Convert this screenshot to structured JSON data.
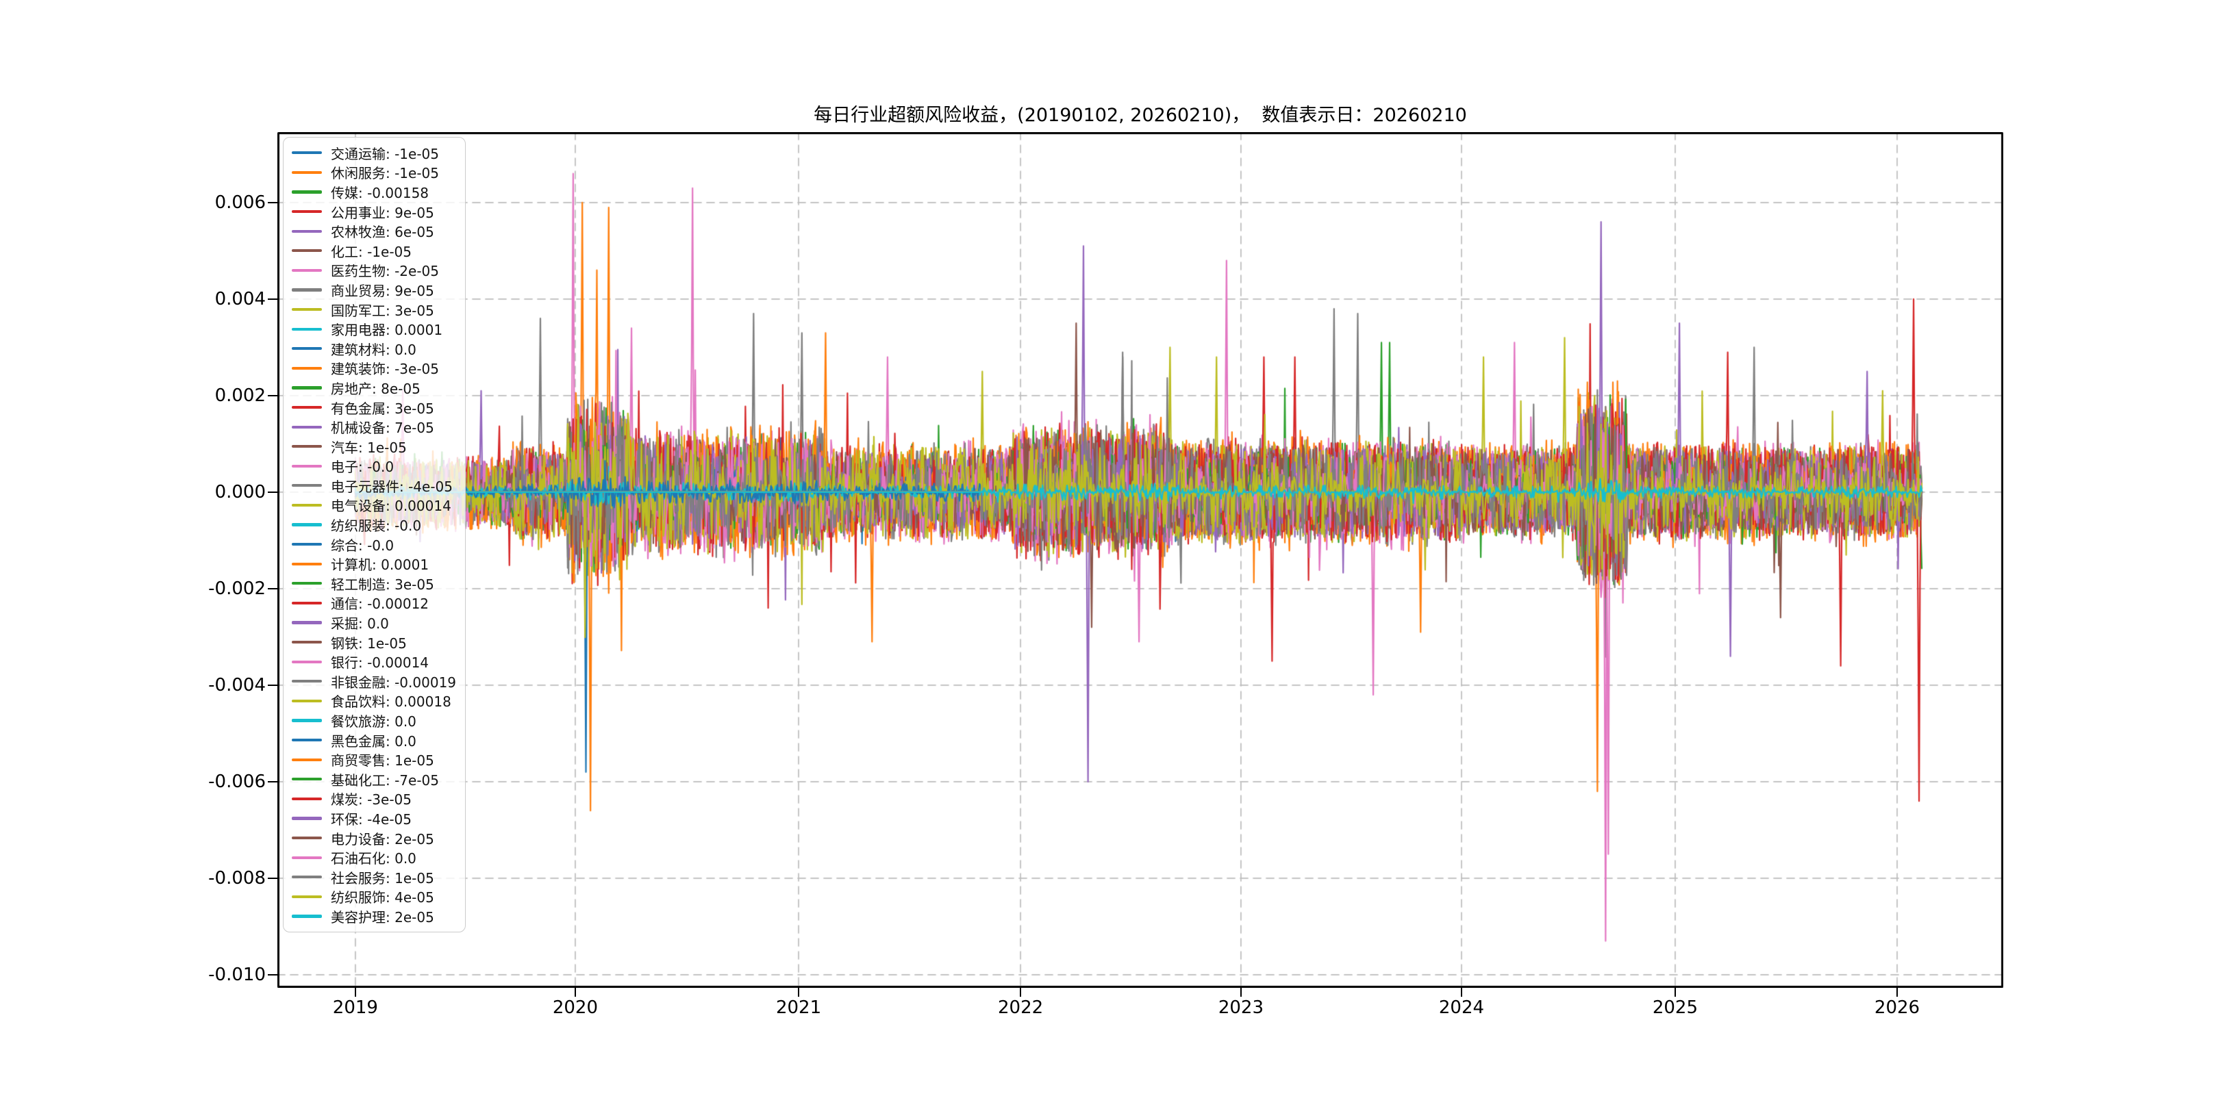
{
  "figure": {
    "background": "#ffffff"
  },
  "chart_data": {
    "type": "line",
    "title": "每日行业超额风险收益，(20190102, 20260210)，  数值表示日：20260210",
    "grid": {
      "on": true,
      "style": "dashed",
      "color": "#bcbcbc"
    },
    "legend_position": "upper-left",
    "ylim": [
      -0.01027,
      0.00746
    ],
    "data_x_range": [
      0.0452,
      0.9528
    ],
    "n_points": 1720,
    "line_width": 2.2,
    "y_ticks": [
      {
        "label": "0.006",
        "v": 0.006
      },
      {
        "label": "0.004",
        "v": 0.004
      },
      {
        "label": "0.002",
        "v": 0.002
      },
      {
        "label": "0.000",
        "v": 0.0
      },
      {
        "label": "-0.002",
        "v": -0.002
      },
      {
        "label": "-0.004",
        "v": -0.004
      },
      {
        "label": "-0.006",
        "v": -0.006
      },
      {
        "label": "-0.008",
        "v": -0.008
      },
      {
        "label": "-0.010",
        "v": -0.01
      }
    ],
    "x_ticks": [
      {
        "label": "2019",
        "f": 0.0452
      },
      {
        "label": "2020",
        "f": 0.1726
      },
      {
        "label": "2021",
        "f": 0.302
      },
      {
        "label": "2022",
        "f": 0.4306
      },
      {
        "label": "2023",
        "f": 0.5583
      },
      {
        "label": "2024",
        "f": 0.6861
      },
      {
        "label": "2025",
        "f": 0.8099
      },
      {
        "label": "2026",
        "f": 0.9385
      }
    ],
    "series": [
      {
        "name": "交通运输",
        "value": "-1e-05",
        "color": "#1f77b4",
        "amp": 0.00028,
        "start": 0
      },
      {
        "name": "休闲服务",
        "value": "-1e-05",
        "color": "#ff7f0e",
        "amp": 0.00055,
        "start": 0
      },
      {
        "name": "传媒",
        "value": "-0.00158",
        "color": "#2ca02c",
        "amp": 0.0005,
        "start": 0
      },
      {
        "name": "公用事业",
        "value": "9e-05",
        "color": "#d62728",
        "amp": 0.00042,
        "start": 0
      },
      {
        "name": "农林牧渔",
        "value": "6e-05",
        "color": "#9467bd",
        "amp": 0.00048,
        "start": 0
      },
      {
        "name": "化工",
        "value": "-1e-05",
        "color": "#8c564b",
        "amp": 0.00045,
        "start": 0
      },
      {
        "name": "医药生物",
        "value": "-2e-05",
        "color": "#e377c2",
        "amp": 0.00058,
        "start": 0
      },
      {
        "name": "商业贸易",
        "value": "9e-05",
        "color": "#7f7f7f",
        "amp": 0.00055,
        "start": 0
      },
      {
        "name": "国防军工",
        "value": "3e-05",
        "color": "#bcbd22",
        "amp": 0.0005,
        "start": 0
      },
      {
        "name": "家用电器",
        "value": "0.0001",
        "color": "#17becf",
        "amp": 0.00018,
        "start": 0
      },
      {
        "name": "建筑材料",
        "value": "0.0",
        "color": "#1f77b4",
        "amp": 0.0003,
        "start": 0
      },
      {
        "name": "建筑装饰",
        "value": "-3e-05",
        "color": "#ff7f0e",
        "amp": 0.00045,
        "start": 0
      },
      {
        "name": "房地产",
        "value": "8e-05",
        "color": "#2ca02c",
        "amp": 0.0004,
        "start": 0
      },
      {
        "name": "有色金属",
        "value": "3e-05",
        "color": "#d62728",
        "amp": 0.00055,
        "start": 0
      },
      {
        "name": "机械设备",
        "value": "7e-05",
        "color": "#9467bd",
        "amp": 0.00045,
        "start": 0
      },
      {
        "name": "汽车",
        "value": "1e-05",
        "color": "#8c564b",
        "amp": 0.00045,
        "start": 0
      },
      {
        "name": "电子",
        "value": "-0.0",
        "color": "#e377c2",
        "amp": 0.0005,
        "start": 0
      },
      {
        "name": "电子元器件",
        "value": "-4e-05",
        "color": "#7f7f7f",
        "amp": 0.00048,
        "start": 0
      },
      {
        "name": "电气设备",
        "value": "0.00014",
        "color": "#bcbd22",
        "amp": 0.00052,
        "start": 0
      },
      {
        "name": "纺织服装",
        "value": "-0.0",
        "color": "#17becf",
        "amp": 0.00016,
        "start": 0
      },
      {
        "name": "综合",
        "value": "-0.0",
        "color": "#1f77b4",
        "amp": 0.0002,
        "start": 0
      },
      {
        "name": "计算机",
        "value": "0.0001",
        "color": "#ff7f0e",
        "amp": 0.0006,
        "start": 0
      },
      {
        "name": "轻工制造",
        "value": "3e-05",
        "color": "#2ca02c",
        "amp": 0.00032,
        "start": 0
      },
      {
        "name": "通信",
        "value": "-0.00012",
        "color": "#d62728",
        "amp": 0.0005,
        "start": 0
      },
      {
        "name": "采掘",
        "value": "0.0",
        "color": "#9467bd",
        "amp": 0.00042,
        "start": 0
      },
      {
        "name": "钢铁",
        "value": "1e-05",
        "color": "#8c564b",
        "amp": 0.0004,
        "start": 0
      },
      {
        "name": "银行",
        "value": "-0.00014",
        "color": "#e377c2",
        "amp": 0.00045,
        "start": 0
      },
      {
        "name": "非银金融",
        "value": "-0.00019",
        "color": "#7f7f7f",
        "amp": 0.00045,
        "start": 0
      },
      {
        "name": "食品饮料",
        "value": "0.00018",
        "color": "#bcbd22",
        "amp": 0.00048,
        "start": 0
      },
      {
        "name": "餐饮旅游",
        "value": "0.0",
        "color": "#17becf",
        "amp": 8e-05,
        "start": 0
      },
      {
        "name": "黑色金属",
        "value": "0.0",
        "color": "#1f77b4",
        "amp": 0.0001,
        "start": 0
      },
      {
        "name": "商贸零售",
        "value": "1e-05",
        "color": "#ff7f0e",
        "amp": 0.0003,
        "start": 0.4
      },
      {
        "name": "基础化工",
        "value": "-7e-05",
        "color": "#2ca02c",
        "amp": 0.00035,
        "start": 0.4
      },
      {
        "name": "煤炭",
        "value": "-3e-05",
        "color": "#d62728",
        "amp": 0.0005,
        "start": 0.4
      },
      {
        "name": "环保",
        "value": "-4e-05",
        "color": "#9467bd",
        "amp": 0.00045,
        "start": 0.4
      },
      {
        "name": "电力设备",
        "value": "2e-05",
        "color": "#8c564b",
        "amp": 0.00048,
        "start": 0.4
      },
      {
        "name": "石油石化",
        "value": "0.0",
        "color": "#e377c2",
        "amp": 0.00035,
        "start": 0.4
      },
      {
        "name": "社会服务",
        "value": "1e-05",
        "color": "#7f7f7f",
        "amp": 0.00045,
        "start": 0.4
      },
      {
        "name": "纺织服饰",
        "value": "4e-05",
        "color": "#bcbd22",
        "amp": 0.0004,
        "start": 0.4
      },
      {
        "name": "美容护理",
        "value": "2e-05",
        "color": "#17becf",
        "amp": 7e-05,
        "start": 0.4
      }
    ],
    "vol_profile": [
      [
        0.1,
        0.55
      ],
      [
        0.135,
        0.75
      ],
      [
        0.175,
        1.35
      ],
      [
        0.3,
        0.95
      ],
      [
        0.42,
        0.72
      ],
      [
        0.52,
        1.0
      ],
      [
        0.7,
        0.8
      ],
      [
        0.78,
        0.72
      ],
      [
        0.812,
        1.55
      ],
      [
        0.88,
        0.75
      ],
      [
        1.01,
        0.72
      ]
    ],
    "notable_spikes": [
      [
        1,
        0.145,
        0.006
      ],
      [
        1,
        0.162,
        0.0059
      ],
      [
        1,
        0.15,
        -0.0066
      ],
      [
        1,
        0.154,
        0.0046
      ],
      [
        6,
        0.139,
        0.0066
      ],
      [
        6,
        0.215,
        0.0063
      ],
      [
        6,
        0.5,
        -0.0031
      ],
      [
        6,
        0.176,
        0.0034
      ],
      [
        6,
        0.03,
        0.0021
      ],
      [
        6,
        0.74,
        0.0031
      ],
      [
        20,
        0.147,
        -0.0058
      ],
      [
        7,
        0.118,
        0.0036
      ],
      [
        7,
        0.254,
        0.0037
      ],
      [
        7,
        0.49,
        0.0029
      ],
      [
        7,
        0.625,
        0.0038
      ],
      [
        7,
        0.64,
        0.0037
      ],
      [
        17,
        0.285,
        0.0033
      ],
      [
        17,
        0.49,
        0.0028
      ],
      [
        21,
        0.3,
        0.0033
      ],
      [
        21,
        0.33,
        -0.0031
      ],
      [
        21,
        0.68,
        -0.0029
      ],
      [
        21,
        0.793,
        -0.0062
      ],
      [
        16,
        0.34,
        0.0028
      ],
      [
        16,
        0.556,
        0.0048
      ],
      [
        16,
        0.8,
        -0.0075
      ],
      [
        24,
        0.465,
        0.0051
      ],
      [
        24,
        0.468,
        -0.006
      ],
      [
        23,
        0.58,
        0.0028
      ],
      [
        23,
        0.585,
        -0.0035
      ],
      [
        12,
        0.655,
        0.0031
      ],
      [
        2,
        0.66,
        0.0031
      ],
      [
        13,
        0.6,
        0.0028
      ],
      [
        26,
        0.65,
        -0.0042
      ],
      [
        26,
        0.798,
        -0.0093
      ],
      [
        34,
        0.795,
        0.0056
      ],
      [
        34,
        0.845,
        0.0035
      ],
      [
        34,
        0.878,
        -0.0034
      ],
      [
        34,
        0.965,
        0.0025
      ],
      [
        33,
        0.876,
        0.0029
      ],
      [
        33,
        0.948,
        -0.0036
      ],
      [
        33,
        0.995,
        0.004
      ],
      [
        33,
        0.998,
        -0.0064
      ],
      [
        38,
        0.975,
        0.0021
      ],
      [
        28,
        0.4,
        0.0025
      ],
      [
        28,
        0.72,
        0.0028
      ],
      [
        28,
        0.772,
        0.0032
      ],
      [
        15,
        0.46,
        0.0035
      ],
      [
        15,
        0.47,
        -0.0028
      ],
      [
        4,
        0.08,
        0.0021
      ],
      [
        8,
        0.52,
        0.003
      ],
      [
        8,
        0.55,
        0.0028
      ],
      [
        37,
        0.893,
        0.003
      ],
      [
        35,
        0.91,
        -0.0026
      ]
    ]
  }
}
